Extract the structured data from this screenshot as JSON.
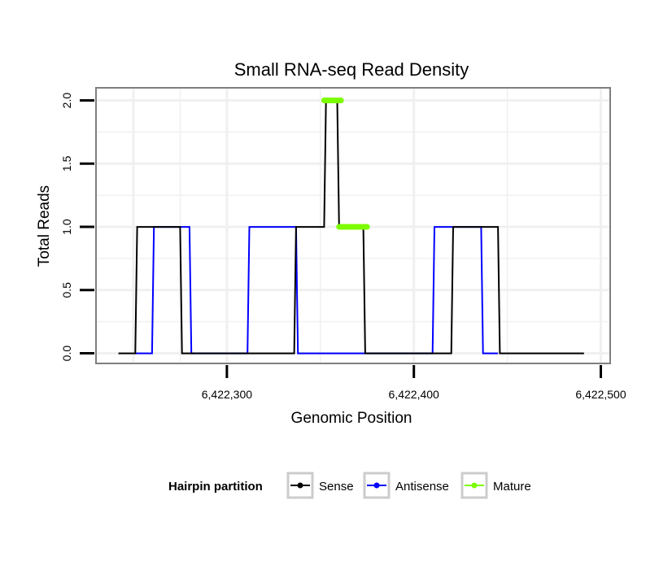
{
  "chart_data": {
    "type": "line",
    "title": "Small RNA-seq Read Density",
    "xlabel": "Genomic Position",
    "ylabel": "Total Reads",
    "xlim": [
      6422230,
      6422505
    ],
    "ylim": [
      -0.08,
      2.1
    ],
    "x_ticks": [
      6422300,
      6422400,
      6422500
    ],
    "x_tick_labels": [
      "6,422,300",
      "6,422,400",
      "6,422,500"
    ],
    "y_ticks": [
      0,
      0.5,
      1,
      1.5,
      2
    ],
    "y_tick_labels": [
      "0.0",
      "0.5",
      "1.0",
      "1.5",
      "2.0"
    ],
    "grid": true,
    "legend": {
      "title": "Hairpin partition",
      "position": "bottom",
      "entries": [
        "Sense",
        "Antisense",
        "Mature"
      ]
    },
    "series": [
      {
        "name": "Sense",
        "color": "#000000",
        "x": [
          6422242,
          6422251,
          6422252,
          6422275,
          6422276,
          6422336,
          6422337,
          6422352,
          6422353,
          6422359,
          6422360,
          6422373,
          6422374,
          6422420,
          6422421,
          6422445,
          6422446,
          6422491
        ],
        "y": [
          0,
          0,
          1,
          1,
          0,
          0,
          1,
          1,
          2,
          2,
          1,
          1,
          0,
          0,
          1,
          1,
          0,
          0
        ]
      },
      {
        "name": "Antisense",
        "color": "#0000ff",
        "x": [
          6422251,
          6422260,
          6422261,
          6422280,
          6422281,
          6422311,
          6422312,
          6422337,
          6422338,
          6422410,
          6422411,
          6422436,
          6422437,
          6422445
        ],
        "y": [
          0,
          0,
          1,
          1,
          0,
          0,
          1,
          1,
          0,
          0,
          1,
          1,
          0,
          0
        ]
      }
    ],
    "mature_segments": [
      {
        "x": [
          6422352,
          6422361
        ],
        "y": 2
      },
      {
        "x": [
          6422360,
          6422375
        ],
        "y": 1
      }
    ],
    "colors": {
      "mature": "#7cfc00",
      "panel_border": "#7f7f7f",
      "grid": "#f0f0f0",
      "legend_key_border": "#cccccc"
    }
  }
}
